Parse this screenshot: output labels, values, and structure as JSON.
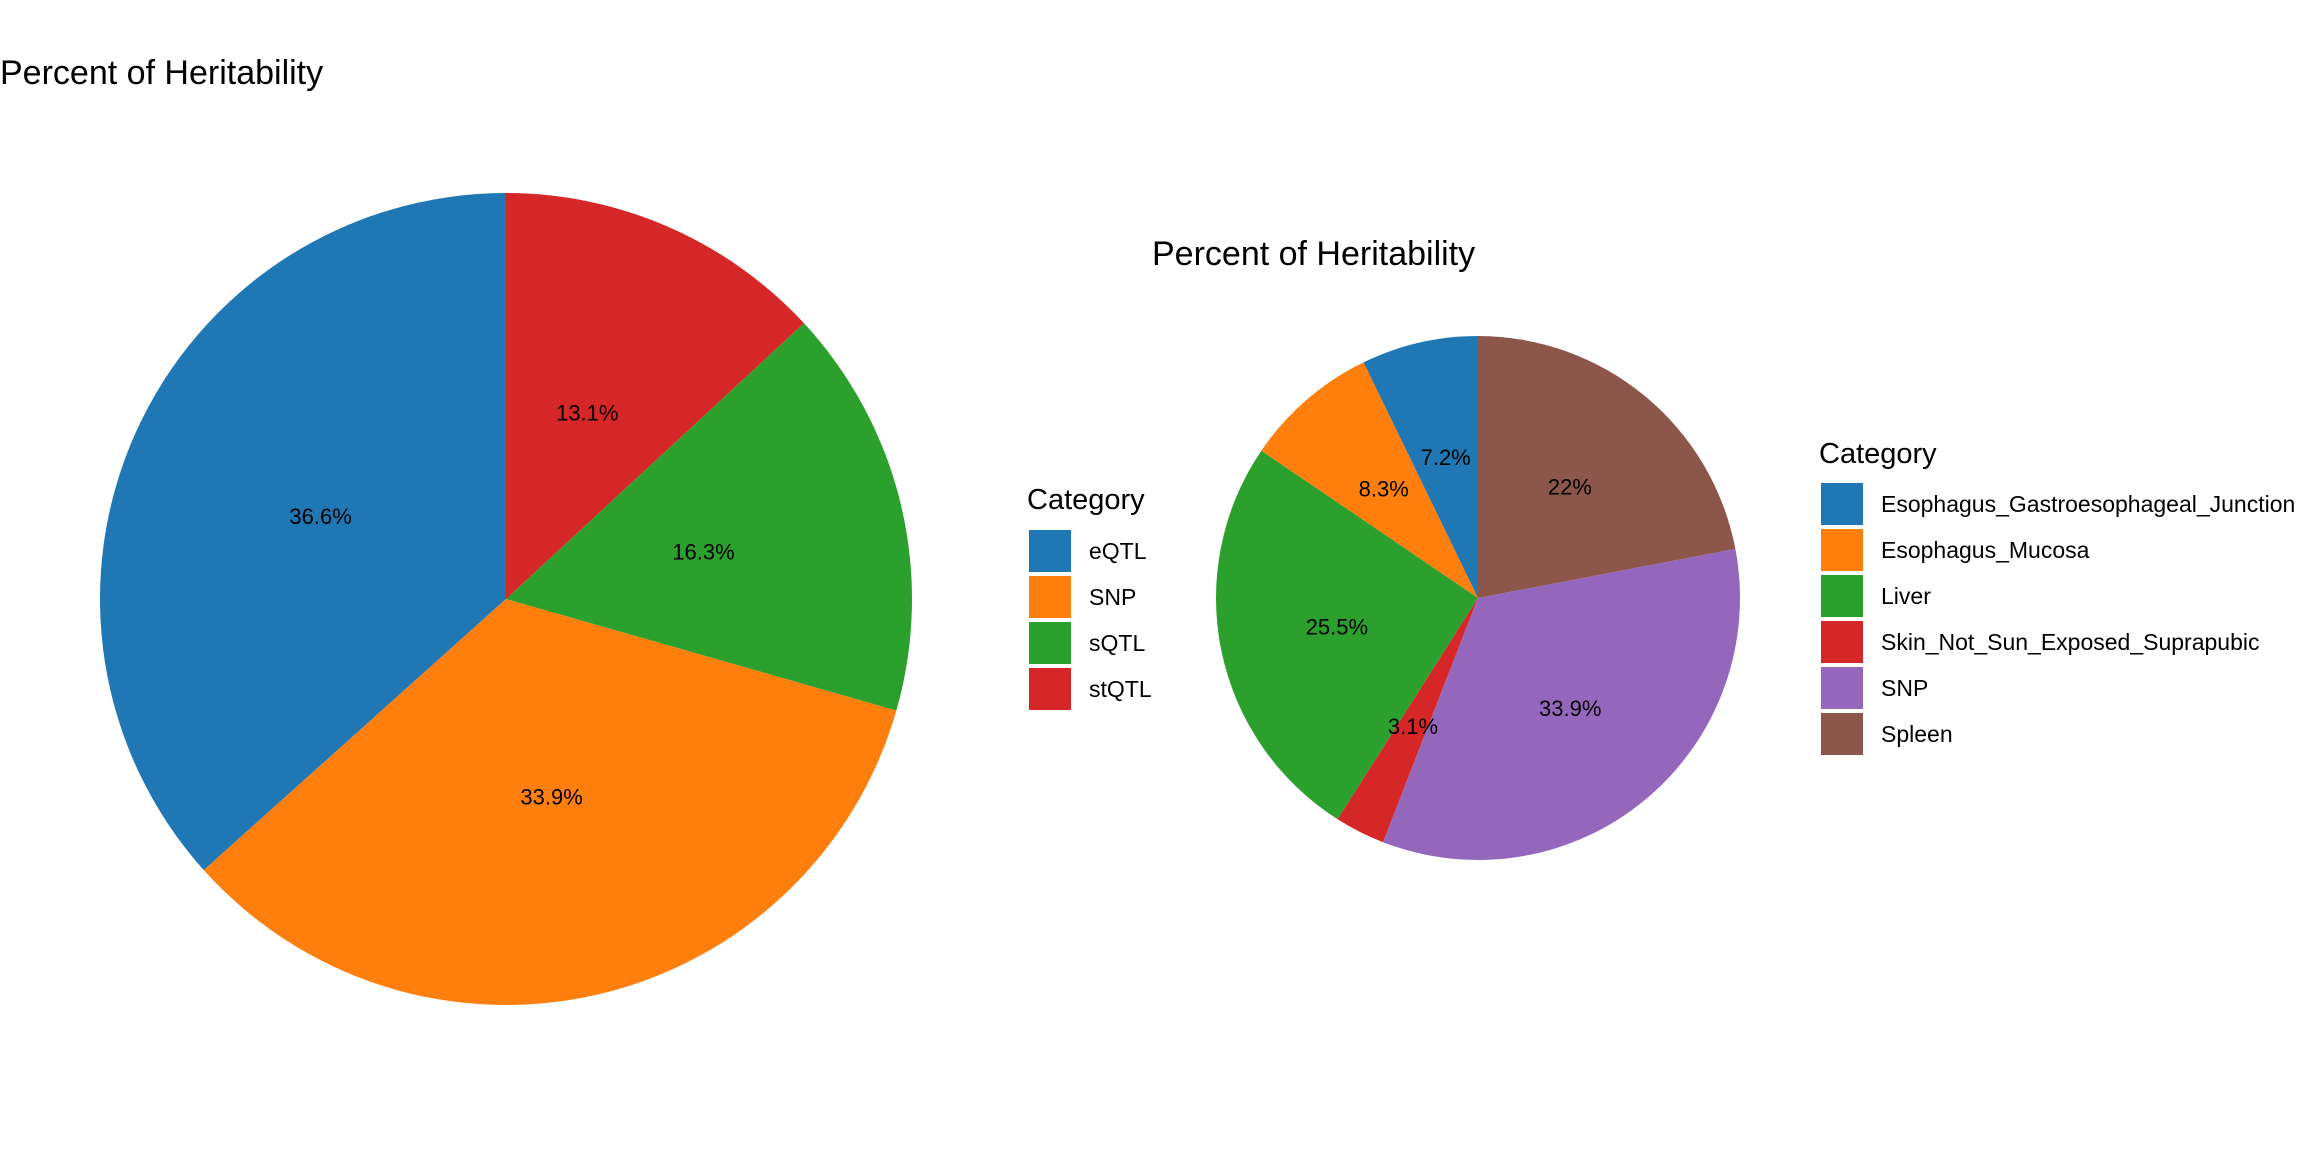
{
  "chart_data": [
    {
      "type": "pie",
      "title": "Percent of Heritability",
      "legend_title": "Category",
      "legend_placement": "right",
      "slices": [
        {
          "label": "eQTL",
          "value": 36.6,
          "text": "36.6%",
          "color": "#1f77b4"
        },
        {
          "label": "SNP",
          "value": 33.9,
          "text": "33.9%",
          "color": "#ff7f0e"
        },
        {
          "label": "sQTL",
          "value": 16.3,
          "text": "16.3%",
          "color": "#2ca02c"
        },
        {
          "label": "stQTL",
          "value": 13.1,
          "text": "13.1%",
          "color": "#d62728"
        }
      ]
    },
    {
      "type": "pie",
      "title": "Percent of Heritability",
      "legend_title": "Category",
      "legend_placement": "right",
      "slices": [
        {
          "label": "Esophagus_Gastroesophageal_Junction",
          "value": 7.2,
          "text": "7.2%",
          "color": "#1f77b4"
        },
        {
          "label": "Esophagus_Mucosa",
          "value": 8.3,
          "text": "8.3%",
          "color": "#ff7f0e"
        },
        {
          "label": "Liver",
          "value": 25.5,
          "text": "25.5%",
          "color": "#2ca02c"
        },
        {
          "label": "Skin_Not_Sun_Exposed_Suprapubic",
          "value": 3.1,
          "text": "3.1%",
          "color": "#d62728"
        },
        {
          "label": "SNP",
          "value": 33.9,
          "text": "33.9%",
          "color": "#9467bd"
        },
        {
          "label": "Spleen",
          "value": 22.0,
          "text": "22%",
          "color": "#8c564b"
        }
      ]
    }
  ]
}
